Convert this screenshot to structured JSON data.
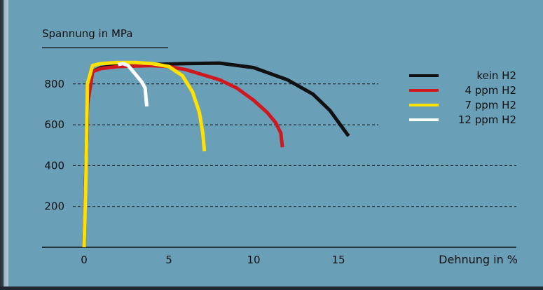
{
  "chart_data": {
    "type": "line",
    "ylabel": "Spannung in MPa",
    "xlabel": "Dehnung in %",
    "xlim": [
      0,
      15
    ],
    "ylim": [
      0,
      900
    ],
    "x_ticks": [
      0,
      5,
      10,
      15
    ],
    "y_ticks": [
      200,
      400,
      600,
      800
    ],
    "legend_position": "top-right",
    "series": [
      {
        "name": "kein H2",
        "color": "#111111",
        "points": [
          [
            0,
            0
          ],
          [
            0.2,
            700
          ],
          [
            0.5,
            860
          ],
          [
            1,
            880
          ],
          [
            2,
            890
          ],
          [
            4,
            895
          ],
          [
            6,
            900
          ],
          [
            8,
            902
          ],
          [
            10,
            880
          ],
          [
            12,
            820
          ],
          [
            13.5,
            750
          ],
          [
            14.5,
            670
          ],
          [
            15.2,
            590
          ],
          [
            15.6,
            545
          ]
        ]
      },
      {
        "name": "4 ppm H2",
        "color": "#d0191f",
        "points": [
          [
            0,
            0
          ],
          [
            0.2,
            700
          ],
          [
            0.5,
            860
          ],
          [
            1,
            875
          ],
          [
            2,
            885
          ],
          [
            4,
            890
          ],
          [
            5,
            885
          ],
          [
            6,
            870
          ],
          [
            8,
            820
          ],
          [
            9,
            780
          ],
          [
            10,
            720
          ],
          [
            10.8,
            660
          ],
          [
            11.3,
            610
          ],
          [
            11.6,
            560
          ],
          [
            11.7,
            490
          ]
        ]
      },
      {
        "name": "7 ppm H2",
        "color": "#ffe100",
        "points": [
          [
            0,
            0
          ],
          [
            0.1,
            300
          ],
          [
            0.2,
            800
          ],
          [
            0.5,
            890
          ],
          [
            1,
            900
          ],
          [
            2,
            905
          ],
          [
            3,
            905
          ],
          [
            4,
            900
          ],
          [
            5,
            885
          ],
          [
            5.8,
            840
          ],
          [
            6.4,
            760
          ],
          [
            6.8,
            660
          ],
          [
            7.0,
            560
          ],
          [
            7.1,
            470
          ]
        ]
      },
      {
        "name": "12 ppm H2",
        "color": "#ffffff",
        "points": [
          [
            2,
            895
          ],
          [
            2.3,
            900
          ],
          [
            2.6,
            890
          ],
          [
            3,
            850
          ],
          [
            3.4,
            810
          ],
          [
            3.6,
            780
          ],
          [
            3.7,
            690
          ]
        ]
      }
    ]
  }
}
